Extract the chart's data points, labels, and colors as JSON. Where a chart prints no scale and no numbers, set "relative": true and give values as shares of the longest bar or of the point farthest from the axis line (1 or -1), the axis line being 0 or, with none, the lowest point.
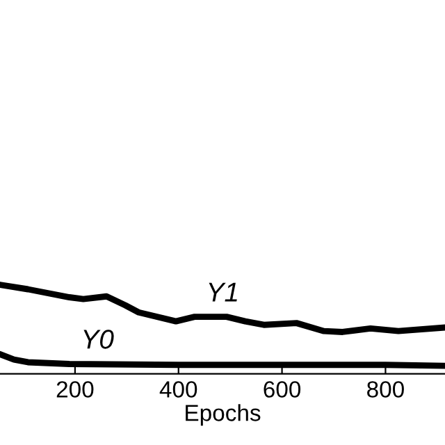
{
  "chart_data": {
    "type": "line",
    "xlabel": "Epochs",
    "relative": true,
    "xlim": [
      55,
      915
    ],
    "xticks": [
      200,
      400,
      600,
      800
    ],
    "grid": false,
    "legend": false,
    "marker": "none",
    "line_style": "solid",
    "series": [
      {
        "name": "Y1",
        "color": "#000000",
        "x": [
          55,
          109,
          189,
          216,
          261,
          297,
          323,
          395,
          431,
          493,
          529,
          565,
          628,
          681,
          717,
          771,
          825,
          914
        ],
        "values": [
          1,
          0.95,
          0.86,
          0.84,
          0.87,
          0.77,
          0.69,
          0.59,
          0.64,
          0.64,
          0.59,
          0.55,
          0.57,
          0.48,
          0.47,
          0.51,
          0.48,
          0.52
        ]
      },
      {
        "name": "Y0",
        "color": "#000000",
        "x": [
          55,
          82,
          109,
          189,
          400,
          600,
          800,
          914
        ],
        "values": [
          0.22,
          0.16,
          0.13,
          0.11,
          0.1,
          0.1,
          0.1,
          0.09
        ]
      }
    ]
  }
}
